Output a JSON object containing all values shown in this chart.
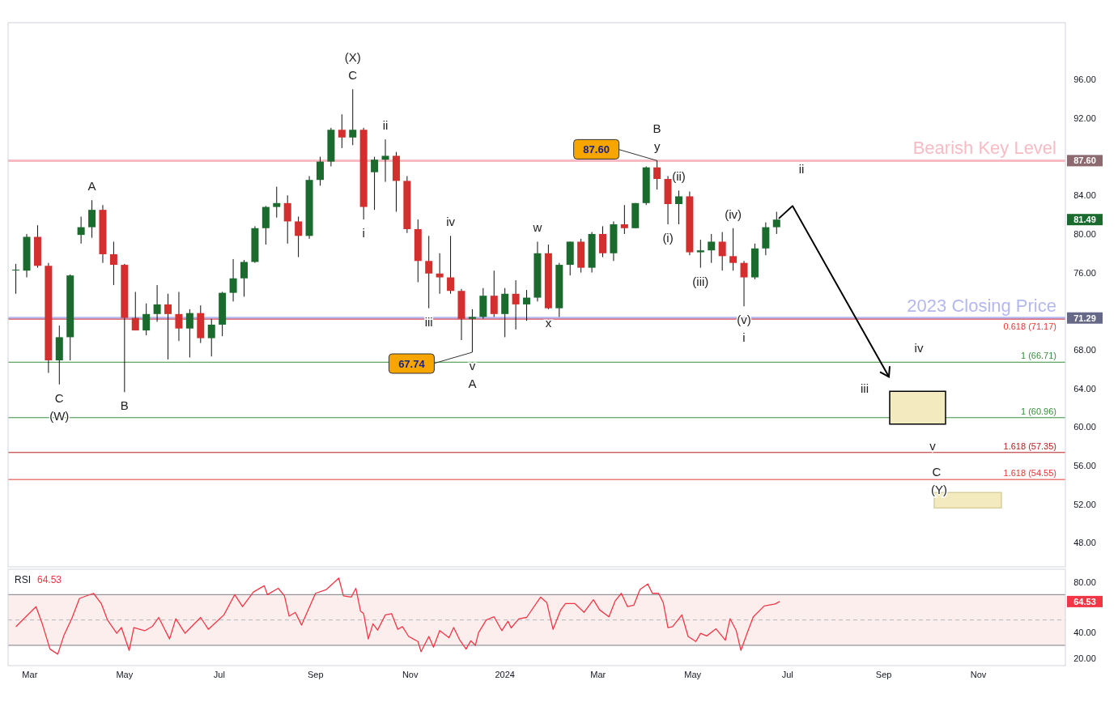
{
  "chart_data": [
    {
      "type": "candlestick",
      "x": [
        "2023-02-20",
        "2023-02-27",
        "2023-03-06",
        "2023-03-13",
        "2023-03-20",
        "2023-03-27",
        "2023-04-03",
        "2023-04-10",
        "2023-04-17",
        "2023-04-24",
        "2023-05-01",
        "2023-05-08",
        "2023-05-15",
        "2023-05-22",
        "2023-05-29",
        "2023-06-05",
        "2023-06-12",
        "2023-06-19",
        "2023-06-26",
        "2023-07-03",
        "2023-07-10",
        "2023-07-17",
        "2023-07-24",
        "2023-07-31",
        "2023-08-07",
        "2023-08-14",
        "2023-08-21",
        "2023-08-28",
        "2023-09-04",
        "2023-09-11",
        "2023-09-18",
        "2023-09-25",
        "2023-10-02",
        "2023-10-09",
        "2023-10-16",
        "2023-10-23",
        "2023-10-30",
        "2023-11-06",
        "2023-11-13",
        "2023-11-20",
        "2023-11-27",
        "2023-12-04",
        "2023-12-11",
        "2023-12-18",
        "2023-12-25",
        "2024-01-01",
        "2024-01-08",
        "2024-01-15",
        "2024-01-22",
        "2024-01-29",
        "2024-02-05",
        "2024-02-12",
        "2024-02-19",
        "2024-02-26",
        "2024-03-04",
        "2024-03-11",
        "2024-03-18",
        "2024-03-25",
        "2024-04-01",
        "2024-04-08",
        "2024-04-15",
        "2024-04-22",
        "2024-04-29",
        "2024-05-06",
        "2024-05-13",
        "2024-05-20",
        "2024-05-27",
        "2024-06-03",
        "2024-06-10",
        "2024-06-17",
        "2024-06-24"
      ],
      "ohlc": [
        [
          76.3,
          76.9,
          73.8,
          76.3
        ],
        [
          76.2,
          80.0,
          75.5,
          79.7
        ],
        [
          79.7,
          80.9,
          76.5,
          76.7
        ],
        [
          76.7,
          77.0,
          65.6,
          66.9
        ],
        [
          66.9,
          70.5,
          64.4,
          69.3
        ],
        [
          69.3,
          75.8,
          66.9,
          75.7
        ],
        [
          79.9,
          81.8,
          79.0,
          80.7
        ],
        [
          80.7,
          83.5,
          79.6,
          82.5
        ],
        [
          82.5,
          83.0,
          77.0,
          77.9
        ],
        [
          77.9,
          79.2,
          74.7,
          76.8
        ],
        [
          76.8,
          76.9,
          63.6,
          71.3
        ],
        [
          71.3,
          74.0,
          70.0,
          70.0
        ],
        [
          70.0,
          72.8,
          69.5,
          71.7
        ],
        [
          71.7,
          74.7,
          70.9,
          72.7
        ],
        [
          72.7,
          73.8,
          67.0,
          71.7
        ],
        [
          71.7,
          74.0,
          68.9,
          70.2
        ],
        [
          70.2,
          72.2,
          67.2,
          71.8
        ],
        [
          71.8,
          72.6,
          68.7,
          69.2
        ],
        [
          69.2,
          71.2,
          67.3,
          70.6
        ],
        [
          70.6,
          74.0,
          69.4,
          73.9
        ],
        [
          73.9,
          77.4,
          73.0,
          75.4
        ],
        [
          75.4,
          77.3,
          73.5,
          77.1
        ],
        [
          77.1,
          80.8,
          77.0,
          80.6
        ],
        [
          80.6,
          82.9,
          78.9,
          82.8
        ],
        [
          82.8,
          84.9,
          81.7,
          83.2
        ],
        [
          83.2,
          84.0,
          79.0,
          81.3
        ],
        [
          81.3,
          81.8,
          77.6,
          79.8
        ],
        [
          79.8,
          86.0,
          79.5,
          85.6
        ],
        [
          85.6,
          88.0,
          85.0,
          87.5
        ],
        [
          87.5,
          91.0,
          87.0,
          90.8
        ],
        [
          90.8,
          92.4,
          88.9,
          90.0
        ],
        [
          90.0,
          95.0,
          89.2,
          90.8
        ],
        [
          90.8,
          91.0,
          81.5,
          82.8
        ],
        [
          86.4,
          88.0,
          82.5,
          87.7
        ],
        [
          87.7,
          89.8,
          85.4,
          88.1
        ],
        [
          88.1,
          88.5,
          82.3,
          85.5
        ],
        [
          85.5,
          86.0,
          80.1,
          80.5
        ],
        [
          80.5,
          81.5,
          75.0,
          77.2
        ],
        [
          77.2,
          79.8,
          72.3,
          75.9
        ],
        [
          75.9,
          78.0,
          73.8,
          75.5
        ],
        [
          75.5,
          79.8,
          73.8,
          74.1
        ],
        [
          74.1,
          74.3,
          69.0,
          71.2
        ],
        [
          71.2,
          72.2,
          67.74,
          71.4
        ],
        [
          71.4,
          74.4,
          71.2,
          73.6
        ],
        [
          73.6,
          76.2,
          71.4,
          71.7
        ],
        [
          71.7,
          74.4,
          69.3,
          73.8
        ],
        [
          73.8,
          75.2,
          70.1,
          72.7
        ],
        [
          72.7,
          74.2,
          71.0,
          73.4
        ],
        [
          73.4,
          79.2,
          73.0,
          78.0
        ],
        [
          78.0,
          78.9,
          72.2,
          72.3
        ],
        [
          72.3,
          77.0,
          71.4,
          76.8
        ],
        [
          76.8,
          79.2,
          75.7,
          79.2
        ],
        [
          79.2,
          79.5,
          76.0,
          76.5
        ],
        [
          76.5,
          80.2,
          76.0,
          80.0
        ],
        [
          80.0,
          80.8,
          77.6,
          78.0
        ],
        [
          78.0,
          81.3,
          77.2,
          81.0
        ],
        [
          81.0,
          83.0,
          80.0,
          80.6
        ],
        [
          80.6,
          83.2,
          80.6,
          83.2
        ],
        [
          83.2,
          87.0,
          83.0,
          86.9
        ],
        [
          86.9,
          87.6,
          84.6,
          85.7
        ],
        [
          85.7,
          86.0,
          81.0,
          83.1
        ],
        [
          83.1,
          84.5,
          81.0,
          83.9
        ],
        [
          83.9,
          84.4,
          77.8,
          78.1
        ],
        [
          78.1,
          79.4,
          76.5,
          78.3
        ],
        [
          78.3,
          80.0,
          77.0,
          79.2
        ],
        [
          79.2,
          80.2,
          76.2,
          77.7
        ],
        [
          77.7,
          80.6,
          76.2,
          77.0
        ],
        [
          77.0,
          77.2,
          72.5,
          75.5
        ],
        [
          75.5,
          79.0,
          75.3,
          78.5
        ],
        [
          78.5,
          81.2,
          77.8,
          80.7
        ],
        [
          80.7,
          82.3,
          80.0,
          81.49
        ]
      ],
      "xlim": [
        "2023-02-15",
        "2024-12-27"
      ],
      "ylim": [
        45.5,
        101.9
      ],
      "yticks": [
        {
          "value": 96,
          "label": "96.00"
        },
        {
          "value": 92,
          "label": "92.00"
        },
        {
          "value": 87.6,
          "label": "87.60"
        },
        {
          "value": 84,
          "label": "84.00"
        },
        {
          "value": 81.49,
          "label": "81.49"
        },
        {
          "value": 80,
          "label": "80.00"
        },
        {
          "value": 76,
          "label": "76.00"
        },
        {
          "value": 71.29,
          "label": "71.29"
        },
        {
          "value": 68,
          "label": "68.00"
        },
        {
          "value": 64,
          "label": "64.00"
        },
        {
          "value": 60,
          "label": "60.00"
        },
        {
          "value": 56,
          "label": "56.00"
        },
        {
          "value": 52,
          "label": "52.00"
        },
        {
          "value": 48,
          "label": "48.00"
        }
      ],
      "tick_labels": "y",
      "ref_lines": [
        {
          "axis": "y",
          "value": 87.6,
          "label": "Bearish Key Level",
          "color": "#f8bbc4"
        },
        {
          "axis": "y",
          "value": 71.29,
          "label": "2023 Closing Price",
          "color": "#b4b8f0"
        },
        {
          "axis": "y",
          "value": 71.17,
          "label": "0.618 (71.17)",
          "color": "#e53935"
        },
        {
          "axis": "y",
          "value": 66.71,
          "label": "1 (66.71)",
          "color": "#388e3c"
        },
        {
          "axis": "y",
          "value": 60.96,
          "label": "1 (60.96)",
          "color": "#388e3c"
        },
        {
          "axis": "y",
          "value": 57.35,
          "label": "1.618 (57.35)",
          "color": "#b71c1c"
        },
        {
          "axis": "y",
          "value": 54.55,
          "label": "1.618 (54.55)",
          "color": "#e53935"
        }
      ],
      "annotations": [
        {
          "text": "C",
          "x": "2023-03-20",
          "y": 64.4
        },
        {
          "text": "(W)",
          "x": "2023-03-20",
          "y": 64.4
        },
        {
          "text": "A",
          "x": "2023-04-10",
          "y": 83.5
        },
        {
          "text": "B",
          "x": "2023-05-01",
          "y": 63.6
        },
        {
          "text": "C",
          "x": "2023-09-25",
          "y": 95.0
        },
        {
          "text": "(X)",
          "x": "2023-09-25",
          "y": 95.0
        },
        {
          "text": "ii",
          "x": "2023-10-16",
          "y": 89.8
        },
        {
          "text": "i",
          "x": "2023-10-02",
          "y": 81.5
        },
        {
          "text": "iv",
          "x": "2023-11-27",
          "y": 79.8
        },
        {
          "text": "iii",
          "x": "2023-11-13",
          "y": 72.3
        },
        {
          "text": "v",
          "x": "2023-12-11",
          "y": 67.74
        },
        {
          "text": "A",
          "x": "2023-12-11",
          "y": 67.74
        },
        {
          "text": "67.74",
          "x": "2023-12-11",
          "y": 67.74
        },
        {
          "text": "w",
          "x": "2024-01-22",
          "y": 79.2
        },
        {
          "text": "x",
          "x": "2024-01-29",
          "y": 72.2
        },
        {
          "text": "y",
          "x": "2024-04-08",
          "y": 87.6
        },
        {
          "text": "B",
          "x": "2024-04-08",
          "y": 87.6
        },
        {
          "text": "87.60",
          "x": "2024-04-08",
          "y": 87.6
        },
        {
          "text": "(ii)",
          "x": "2024-04-22",
          "y": 84.5
        },
        {
          "text": "(i)",
          "x": "2024-04-15",
          "y": 81.0
        },
        {
          "text": "(iii)",
          "x": "2024-05-06",
          "y": 76.5
        },
        {
          "text": "(iv)",
          "x": "2024-05-27",
          "y": 80.6
        },
        {
          "text": "(v)",
          "x": "2024-06-03",
          "y": 72.5
        },
        {
          "text": "i",
          "x": "2024-06-03",
          "y": 72.5
        },
        "ii",
        "iii",
        "iv",
        "v",
        "C",
        "(Y)"
      ]
    },
    {
      "type": "line",
      "title": "RSI",
      "series": [
        {
          "color": "#f23645",
          "x": [
            "2023-02-20",
            "2023-03-05",
            "2023-03-09",
            "2023-03-14",
            "2023-03-19",
            "2023-03-23",
            "2023-03-28",
            "2023-04-02",
            "2023-04-11",
            "2023-04-16",
            "2023-04-20",
            "2023-04-26",
            "2023-04-29",
            "2023-05-04",
            "2023-05-07",
            "2023-05-14",
            "2023-05-19",
            "2023-05-23",
            "2023-05-30",
            "2023-06-03",
            "2023-06-09",
            "2023-06-19",
            "2023-06-24",
            "2023-07-04",
            "2023-07-11",
            "2023-07-16",
            "2023-07-23",
            "2023-07-30",
            "2023-08-01",
            "2023-08-08",
            "2023-08-12",
            "2023-08-15",
            "2023-08-19",
            "2023-08-23",
            "2023-09-01",
            "2023-09-08",
            "2023-09-16",
            "2023-09-19",
            "2023-09-24",
            "2023-09-27",
            "2023-09-30",
            "2023-10-02",
            "2023-10-05",
            "2023-10-08",
            "2023-10-11",
            "2023-10-16",
            "2023-10-20",
            "2023-10-24",
            "2023-10-27",
            "2023-10-31",
            "2023-11-06",
            "2023-11-08",
            "2023-11-13",
            "2023-11-16",
            "2023-11-20",
            "2023-11-26",
            "2023-11-29",
            "2023-12-03",
            "2023-12-07",
            "2023-12-10",
            "2023-12-13",
            "2023-12-15",
            "2023-12-20",
            "2023-12-25",
            "2023-12-30",
            "2024-01-03",
            "2024-01-05",
            "2024-01-10",
            "2024-01-15",
            "2024-01-24",
            "2024-01-28",
            "2024-02-01",
            "2024-02-06",
            "2024-02-09",
            "2024-02-15",
            "2024-02-21",
            "2024-02-27",
            "2024-03-02",
            "2024-03-08",
            "2024-03-12",
            "2024-03-16",
            "2024-03-20",
            "2024-03-24",
            "2024-03-28",
            "2024-04-02",
            "2024-04-05",
            "2024-04-09",
            "2024-04-12",
            "2024-04-15",
            "2024-04-18",
            "2024-04-24",
            "2024-04-28",
            "2024-05-03",
            "2024-05-06",
            "2024-05-10",
            "2024-05-16",
            "2024-05-22",
            "2024-05-25",
            "2024-05-29",
            "2024-06-01",
            "2024-06-05",
            "2024-06-09",
            "2024-06-16",
            "2024-06-23",
            "2024-06-26"
          ],
          "values": [
            44.7,
            60.5,
            47,
            27,
            23,
            38,
            51,
            67,
            71,
            63,
            50,
            39.5,
            44,
            26,
            44,
            41.5,
            45,
            52,
            35,
            51,
            39.5,
            52,
            42.6,
            54,
            70,
            60.5,
            72,
            77,
            70,
            75,
            69,
            53,
            56,
            46,
            71,
            74,
            83,
            69,
            68,
            75,
            57,
            55,
            35,
            47,
            42,
            54,
            55,
            42.6,
            44.7,
            37,
            33,
            25,
            37,
            28.5,
            41.6,
            36,
            44,
            34,
            27,
            33.6,
            30,
            40,
            50,
            52.5,
            41.6,
            49,
            43.7,
            51,
            52,
            68,
            63.7,
            42.6,
            58,
            63,
            63,
            56,
            66,
            58,
            52.5,
            65,
            71,
            60.5,
            61.6,
            74,
            78.4,
            71,
            71,
            63.7,
            44,
            44.7,
            54,
            37,
            33,
            39.5,
            37.4,
            43,
            34,
            51,
            41.6,
            26,
            39.5,
            52.5,
            61,
            62.6,
            64.53
          ]
        }
      ],
      "xlim": [
        "2023-02-15",
        "2024-12-27"
      ],
      "xticks": [
        {
          "value": "2023-03-01",
          "label": "Mar"
        },
        {
          "value": "2023-05-01",
          "label": "May"
        },
        {
          "value": "2023-07-01",
          "label": "Jul"
        },
        {
          "value": "2023-09-01",
          "label": "Sep"
        },
        {
          "value": "2023-11-01",
          "label": "Nov"
        },
        {
          "value": "2024-01-01",
          "label": "2024"
        },
        {
          "value": "2024-03-01",
          "label": "Mar"
        },
        {
          "value": "2024-05-01",
          "label": "May"
        },
        {
          "value": "2024-07-01",
          "label": "Jul"
        },
        {
          "value": "2024-09-01",
          "label": "Sep"
        },
        {
          "value": "2024-11-01",
          "label": "Nov"
        }
      ],
      "ylim": [
        14,
        90
      ],
      "yticks": [
        {
          "value": 80,
          "label": "80.00"
        },
        {
          "value": 64.53,
          "label": "64.53"
        },
        {
          "value": 40,
          "label": "40.00"
        },
        {
          "value": 20,
          "label": "20.00"
        }
      ],
      "ref_lines": [
        {
          "axis": "y",
          "value": 70,
          "color": "#787b86"
        },
        {
          "axis": "y",
          "value": 50,
          "color": "#b2b5be",
          "line_style": "dashed"
        },
        {
          "axis": "y",
          "value": 30,
          "color": "#787b86"
        }
      ],
      "bands": [
        {
          "axis": "y",
          "from": 30,
          "to": 70,
          "color": "#fdeeee"
        }
      ],
      "annotations": [
        "64.53"
      ]
    }
  ]
}
